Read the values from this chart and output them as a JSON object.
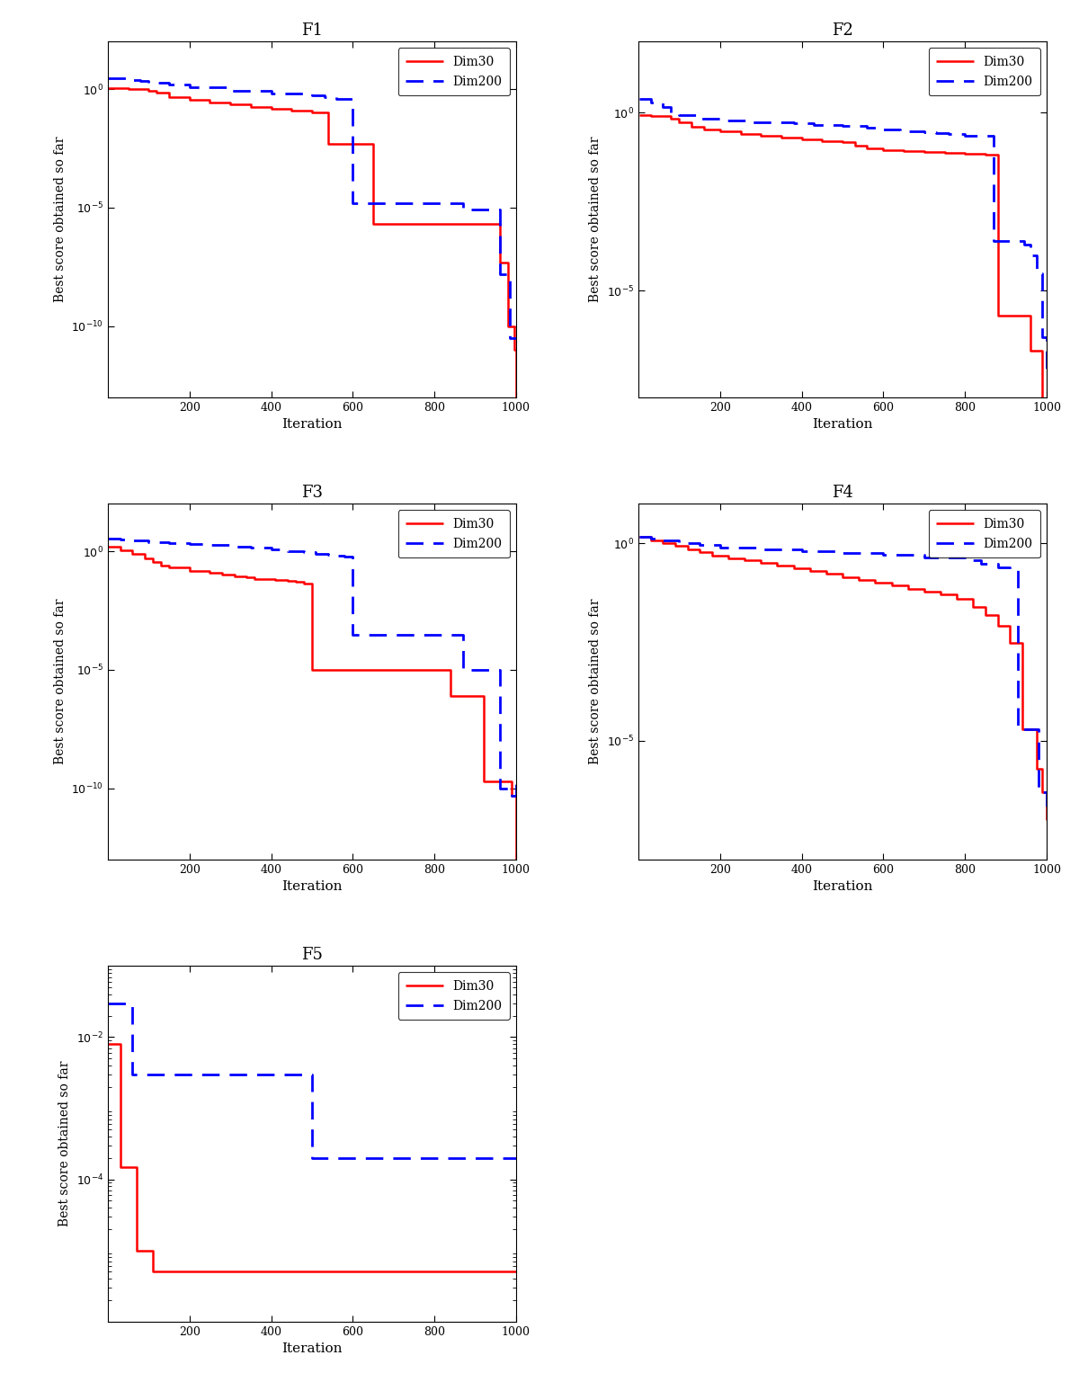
{
  "functions": [
    "F1",
    "F2",
    "F3",
    "F4",
    "F5"
  ],
  "dim30_color": "#FF0000",
  "dim200_color": "#0000FF",
  "dim30_label": "Dim30",
  "dim200_label": "Dim200",
  "xlabel": "Iteration",
  "ylabel": "Best score obtained so far",
  "xlim": [
    0,
    1000
  ],
  "F1": {
    "dim30_x": [
      1,
      50,
      100,
      120,
      150,
      200,
      250,
      300,
      350,
      400,
      450,
      480,
      500,
      520,
      540,
      560,
      580,
      600,
      650,
      700,
      750,
      800,
      840,
      870,
      900,
      920,
      940,
      960,
      970,
      980,
      990,
      995,
      1000
    ],
    "dim30_y": [
      1.1,
      1.0,
      0.85,
      0.72,
      0.45,
      0.35,
      0.28,
      0.22,
      0.18,
      0.15,
      0.12,
      0.12,
      0.1,
      0.1,
      0.005,
      0.005,
      0.005,
      0.005,
      2e-06,
      2e-06,
      2e-06,
      2e-06,
      2e-06,
      2e-06,
      2e-06,
      2e-06,
      2e-06,
      5e-08,
      5e-08,
      1e-10,
      1e-10,
      1e-11,
      1e-13
    ],
    "dim200_x": [
      1,
      50,
      80,
      100,
      150,
      200,
      300,
      400,
      500,
      530,
      560,
      600,
      650,
      700,
      750,
      800,
      840,
      870,
      900,
      920,
      940,
      960,
      975,
      985,
      1000
    ],
    "dim200_y": [
      3.0,
      2.5,
      2.3,
      1.8,
      1.5,
      1.2,
      0.85,
      0.65,
      0.55,
      0.45,
      0.38,
      1.5e-05,
      1.5e-05,
      1.5e-05,
      1.5e-05,
      1.5e-05,
      1.5e-05,
      8e-06,
      8e-06,
      8e-06,
      8e-06,
      1.5e-08,
      1.5e-08,
      3e-11,
      3e-11
    ],
    "ylim_lo": -13,
    "ylim_hi": 2,
    "ytick_exp": [
      -10,
      -5,
      0
    ]
  },
  "F2": {
    "dim30_x": [
      1,
      30,
      50,
      80,
      100,
      130,
      160,
      200,
      250,
      300,
      350,
      400,
      450,
      500,
      530,
      560,
      600,
      650,
      700,
      750,
      800,
      850,
      880,
      910,
      930,
      950,
      960,
      975,
      990,
      1000
    ],
    "dim30_y": [
      0.85,
      0.83,
      0.82,
      0.7,
      0.55,
      0.4,
      0.35,
      0.3,
      0.25,
      0.22,
      0.2,
      0.18,
      0.16,
      0.15,
      0.12,
      0.1,
      0.09,
      0.085,
      0.08,
      0.075,
      0.07,
      0.065,
      2e-06,
      2e-06,
      2e-06,
      2e-06,
      2e-07,
      2e-07,
      5e-09,
      1e-09
    ],
    "dim200_x": [
      1,
      30,
      60,
      80,
      100,
      150,
      200,
      280,
      380,
      430,
      500,
      560,
      600,
      640,
      660,
      700,
      730,
      760,
      800,
      830,
      870,
      900,
      925,
      945,
      960,
      975,
      990,
      1000
    ],
    "dim200_y": [
      2.5,
      2.0,
      1.5,
      1.0,
      0.85,
      0.7,
      0.62,
      0.55,
      0.5,
      0.45,
      0.42,
      0.38,
      0.35,
      0.32,
      0.3,
      0.28,
      0.27,
      0.25,
      0.22,
      0.22,
      0.00025,
      0.00025,
      0.00025,
      0.0002,
      0.0001,
      3e-05,
      5e-07,
      5e-08
    ],
    "ylim_lo": -8,
    "ylim_hi": 2,
    "ytick_exp": [
      -5,
      0
    ]
  },
  "F3": {
    "dim30_x": [
      1,
      30,
      60,
      90,
      110,
      130,
      150,
      200,
      250,
      280,
      310,
      340,
      360,
      380,
      410,
      440,
      460,
      480,
      500,
      520,
      540,
      560,
      600,
      650,
      700,
      750,
      800,
      840,
      880,
      920,
      940,
      960,
      975,
      990,
      1000
    ],
    "dim30_y": [
      1.5,
      1.1,
      0.8,
      0.5,
      0.35,
      0.25,
      0.2,
      0.15,
      0.12,
      0.1,
      0.09,
      0.08,
      0.07,
      0.065,
      0.06,
      0.055,
      0.05,
      0.045,
      1e-05,
      1e-05,
      1e-05,
      1e-05,
      1e-05,
      1e-05,
      1e-05,
      1e-05,
      1e-05,
      8e-07,
      8e-07,
      2e-10,
      2e-10,
      2e-10,
      2e-10,
      5e-11,
      1e-13
    ],
    "dim200_x": [
      1,
      30,
      60,
      100,
      150,
      200,
      250,
      300,
      350,
      400,
      440,
      480,
      510,
      540,
      560,
      580,
      600,
      650,
      700,
      750,
      800,
      840,
      870,
      900,
      930,
      960,
      975,
      990,
      1000
    ],
    "dim200_y": [
      3.5,
      3.0,
      2.8,
      2.5,
      2.2,
      2.0,
      1.8,
      1.6,
      1.4,
      1.2,
      1.0,
      0.9,
      0.8,
      0.7,
      0.65,
      0.62,
      0.0003,
      0.0003,
      0.0003,
      0.0003,
      0.0003,
      0.0003,
      1e-05,
      1e-05,
      1e-05,
      1e-10,
      1e-10,
      5e-11,
      2e-10
    ],
    "ylim_lo": -13,
    "ylim_hi": 2,
    "ytick_exp": [
      -10,
      -5,
      0
    ]
  },
  "F4": {
    "dim30_x": [
      1,
      30,
      60,
      90,
      120,
      150,
      180,
      220,
      260,
      300,
      340,
      380,
      420,
      460,
      500,
      540,
      580,
      620,
      660,
      700,
      740,
      780,
      820,
      850,
      880,
      910,
      940,
      960,
      975,
      990,
      1000
    ],
    "dim30_y": [
      1.5,
      1.2,
      1.0,
      0.85,
      0.7,
      0.6,
      0.5,
      0.42,
      0.38,
      0.32,
      0.28,
      0.24,
      0.2,
      0.17,
      0.14,
      0.12,
      0.1,
      0.085,
      0.07,
      0.06,
      0.05,
      0.04,
      0.025,
      0.015,
      0.008,
      0.003,
      2e-05,
      2e-05,
      2e-06,
      5e-07,
      1e-07
    ],
    "dim200_x": [
      1,
      30,
      60,
      100,
      150,
      200,
      300,
      400,
      500,
      600,
      700,
      800,
      840,
      880,
      910,
      930,
      950,
      965,
      980,
      1000
    ],
    "dim200_y": [
      1.5,
      1.3,
      1.2,
      1.0,
      0.9,
      0.8,
      0.7,
      0.65,
      0.58,
      0.52,
      0.45,
      0.38,
      0.3,
      0.25,
      0.22,
      2e-05,
      2e-05,
      2e-05,
      5e-07,
      2e-07
    ],
    "ylim_lo": -8,
    "ylim_hi": 1,
    "ytick_exp": [
      -5,
      0
    ]
  },
  "F5": {
    "dim30_x": [
      1,
      10,
      30,
      55,
      70,
      90,
      110,
      130,
      1000
    ],
    "dim30_y": [
      0.008,
      0.008,
      0.00015,
      0.00015,
      1e-05,
      1e-05,
      5e-06,
      5e-06,
      5e-06
    ],
    "dim200_x": [
      1,
      30,
      60,
      80,
      200,
      300,
      400,
      500,
      560,
      600,
      1000
    ],
    "dim200_y": [
      0.03,
      0.03,
      0.003,
      0.003,
      0.003,
      0.003,
      0.003,
      0.0002,
      0.0002,
      0.0002,
      0.0002
    ],
    "ylim_lo": -6,
    "ylim_hi": -1,
    "ytick_exp": [
      -4,
      -2
    ]
  }
}
